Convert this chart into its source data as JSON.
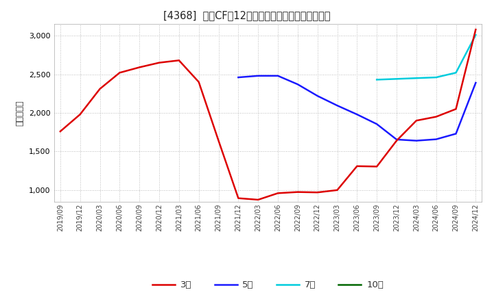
{
  "title": "[4368]  営業CFの12か月移動合計の標準偏差の推移",
  "ylabel": "（百万円）",
  "background_color": "#ffffff",
  "plot_bg_color": "#ffffff",
  "grid_color": "#bbbbbb",
  "ylim": [
    850,
    3150
  ],
  "yticks": [
    1000,
    1500,
    2000,
    2500,
    3000
  ],
  "legend_labels": [
    "3年",
    "5年",
    "7年",
    "10年"
  ],
  "legend_colors": [
    "#dd0000",
    "#1a1aff",
    "#00ccdd",
    "#006600"
  ],
  "series_3y": {
    "x": [
      "2019/09",
      "2019/12",
      "2020/03",
      "2020/06",
      "2020/09",
      "2020/12",
      "2021/03",
      "2021/06",
      "2021/09",
      "2021/12",
      "2022/03",
      "2022/06",
      "2022/09",
      "2022/12",
      "2023/03",
      "2023/06",
      "2023/09",
      "2023/12",
      "2024/03",
      "2024/06",
      "2024/09",
      "2024/12"
    ],
    "y": [
      1760,
      1980,
      2310,
      2520,
      2590,
      2650,
      2680,
      2400,
      1640,
      895,
      875,
      960,
      975,
      970,
      1000,
      1310,
      1305,
      1640,
      1900,
      1950,
      2050,
      3080
    ]
  },
  "series_5y": {
    "x": [
      "2021/12",
      "2022/03",
      "2022/06",
      "2022/09",
      "2022/12",
      "2023/03",
      "2023/06",
      "2023/09",
      "2023/12",
      "2024/03",
      "2024/06",
      "2024/09",
      "2024/12"
    ],
    "y": [
      2460,
      2480,
      2480,
      2370,
      2220,
      2095,
      1980,
      1855,
      1655,
      1640,
      1658,
      1730,
      2390
    ]
  },
  "series_7y": {
    "x": [
      "2023/09",
      "2023/12",
      "2024/03",
      "2024/06",
      "2024/09",
      "2024/12"
    ],
    "y": [
      2430,
      2440,
      2450,
      2460,
      2520,
      3010
    ]
  },
  "series_10y": {
    "x": [],
    "y": []
  },
  "xticks": [
    "2019/09",
    "2019/12",
    "2020/03",
    "2020/06",
    "2020/09",
    "2020/12",
    "2021/03",
    "2021/06",
    "2021/09",
    "2021/12",
    "2022/03",
    "2022/06",
    "2022/09",
    "2022/12",
    "2023/03",
    "2023/06",
    "2023/09",
    "2023/12",
    "2024/03",
    "2024/06",
    "2024/09",
    "2024/12"
  ]
}
